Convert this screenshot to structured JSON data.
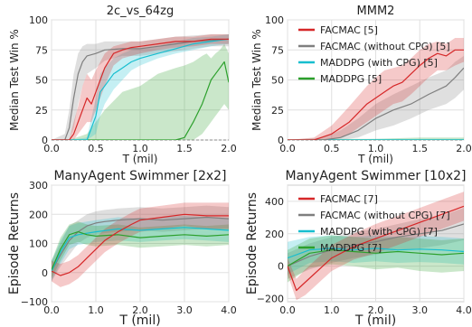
{
  "colors": {
    "facmac": "#d62728",
    "facmac_no_cpg": "#7f7f7f",
    "maddpg_cpg": "#17becf",
    "maddpg": "#2ca02c",
    "grid": "#e0e0e0",
    "axis": "#cccccc"
  },
  "chart_data": [
    {
      "id": "smac_2c",
      "type": "line",
      "title": "2c_vs_64zg",
      "xlabel": "T (mil)",
      "ylabel": "Median Test Win %",
      "xlim": [
        0,
        2.0
      ],
      "ylim": [
        0,
        100
      ],
      "xticks": [
        "0.0",
        "0.5",
        "1.0",
        "1.5",
        "2.0"
      ],
      "yticks": [
        "0",
        "25",
        "50",
        "75",
        "100"
      ],
      "xtick_values": [
        0,
        0.5,
        1.0,
        1.5,
        2.0
      ],
      "ytick_values": [
        0,
        25,
        50,
        75,
        100
      ],
      "grid": true,
      "legend": null,
      "series": [
        {
          "key": "maddpg",
          "x": [
            0,
            0.2,
            0.4,
            0.6,
            0.8,
            1.0,
            1.1,
            1.2,
            1.4,
            1.5,
            1.6,
            1.7,
            1.75,
            1.8,
            1.85,
            1.9,
            1.95,
            2.0
          ],
          "y": [
            0,
            0,
            0,
            0,
            0,
            0,
            0,
            0,
            0,
            2,
            15,
            30,
            40,
            50,
            55,
            60,
            65,
            48
          ],
          "lo": [
            0,
            0,
            0,
            0,
            0,
            0,
            0,
            0,
            0,
            0,
            0,
            5,
            10,
            15,
            20,
            25,
            30,
            25
          ],
          "hi": [
            0,
            0,
            5,
            25,
            40,
            45,
            50,
            55,
            60,
            62,
            65,
            70,
            72,
            68,
            72,
            75,
            80,
            72
          ]
        },
        {
          "key": "maddpg_cpg",
          "x": [
            0,
            0.2,
            0.4,
            0.5,
            0.55,
            0.6,
            0.7,
            0.8,
            0.9,
            1.0,
            1.2,
            1.4,
            1.6,
            1.8,
            2.0
          ],
          "y": [
            0,
            0,
            0,
            20,
            40,
            45,
            55,
            60,
            65,
            68,
            72,
            76,
            80,
            82,
            84
          ],
          "lo": [
            0,
            0,
            0,
            5,
            20,
            30,
            42,
            50,
            58,
            62,
            68,
            72,
            75,
            78,
            80
          ],
          "hi": [
            0,
            0,
            2,
            35,
            55,
            60,
            68,
            72,
            75,
            76,
            78,
            82,
            85,
            86,
            88
          ]
        },
        {
          "key": "facmac_no_cpg",
          "x": [
            0,
            0.15,
            0.2,
            0.25,
            0.3,
            0.35,
            0.4,
            0.5,
            0.6,
            0.8,
            1.0,
            1.2,
            1.4,
            1.6,
            1.8,
            2.0
          ],
          "y": [
            0,
            0,
            10,
            35,
            55,
            65,
            70,
            72,
            75,
            76,
            76,
            78,
            80,
            82,
            83,
            84
          ],
          "lo": [
            0,
            0,
            0,
            10,
            30,
            45,
            55,
            60,
            66,
            70,
            70,
            72,
            74,
            76,
            78,
            78
          ],
          "hi": [
            0,
            5,
            25,
            55,
            72,
            78,
            80,
            80,
            82,
            82,
            82,
            84,
            86,
            87,
            88,
            88
          ]
        },
        {
          "key": "facmac",
          "x": [
            0,
            0.2,
            0.25,
            0.3,
            0.35,
            0.4,
            0.45,
            0.5,
            0.6,
            0.7,
            0.8,
            0.9,
            1.0,
            1.2,
            1.4,
            1.6,
            1.8,
            2.0
          ],
          "y": [
            0,
            0,
            5,
            15,
            25,
            35,
            30,
            40,
            60,
            72,
            75,
            77,
            78,
            80,
            82,
            82,
            84,
            84
          ],
          "lo": [
            0,
            0,
            0,
            5,
            10,
            15,
            15,
            25,
            45,
            62,
            68,
            70,
            72,
            75,
            77,
            78,
            80,
            80
          ],
          "hi": [
            0,
            0,
            15,
            28,
            45,
            55,
            50,
            58,
            72,
            78,
            80,
            82,
            82,
            84,
            86,
            86,
            88,
            88
          ]
        }
      ]
    },
    {
      "id": "smac_mmm2",
      "type": "line",
      "title": "MMM2",
      "xlabel": "T (mil)",
      "ylabel": "Median Test Win %",
      "xlim": [
        0,
        2.0
      ],
      "ylim": [
        0,
        100
      ],
      "xticks": [
        "0.0",
        "0.5",
        "1.0",
        "1.5",
        "2.0"
      ],
      "yticks": [
        "0",
        "25",
        "50",
        "75",
        "100"
      ],
      "xtick_values": [
        0,
        0.5,
        1.0,
        1.5,
        2.0
      ],
      "ytick_values": [
        0,
        25,
        50,
        75,
        100
      ],
      "grid": true,
      "legend": "top-right",
      "legend_entries": [
        {
          "key": "facmac",
          "label": "FACMAC [5]"
        },
        {
          "key": "facmac_no_cpg",
          "label": "FACMAC (without CPG) [5]"
        },
        {
          "key": "maddpg_cpg",
          "label": "MADDPG (with CPG) [5]"
        },
        {
          "key": "maddpg",
          "label": "MADDPG [5]"
        }
      ],
      "series": [
        {
          "key": "maddpg",
          "x": [
            0,
            0.5,
            1.0,
            1.5,
            2.0
          ],
          "y": [
            0,
            0,
            0,
            0,
            0
          ],
          "lo": [
            0,
            0,
            0,
            0,
            0
          ],
          "hi": [
            0,
            1,
            1,
            2,
            2
          ]
        },
        {
          "key": "maddpg_cpg",
          "x": [
            0,
            0.5,
            1.0,
            1.5,
            2.0
          ],
          "y": [
            0,
            0,
            0,
            0,
            0
          ],
          "lo": [
            0,
            0,
            0,
            0,
            0
          ],
          "hi": [
            0,
            0,
            1,
            1,
            1
          ]
        },
        {
          "key": "facmac_no_cpg",
          "x": [
            0,
            0.4,
            0.6,
            0.8,
            1.0,
            1.2,
            1.4,
            1.6,
            1.8,
            1.9,
            2.0
          ],
          "y": [
            0,
            0,
            2,
            8,
            18,
            25,
            30,
            38,
            45,
            52,
            60
          ],
          "lo": [
            0,
            0,
            0,
            2,
            8,
            12,
            18,
            25,
            30,
            35,
            42
          ],
          "hi": [
            0,
            2,
            8,
            18,
            30,
            38,
            45,
            52,
            58,
            65,
            70
          ]
        },
        {
          "key": "facmac",
          "x": [
            0,
            0.3,
            0.5,
            0.7,
            0.9,
            1.0,
            1.1,
            1.2,
            1.3,
            1.4,
            1.5,
            1.6,
            1.7,
            1.8,
            1.9,
            2.0
          ],
          "y": [
            0,
            0,
            5,
            15,
            30,
            35,
            40,
            45,
            48,
            55,
            62,
            68,
            72,
            70,
            75,
            75
          ],
          "lo": [
            0,
            0,
            0,
            5,
            15,
            20,
            25,
            30,
            32,
            38,
            45,
            52,
            58,
            58,
            62,
            65
          ],
          "hi": [
            0,
            2,
            12,
            28,
            45,
            52,
            58,
            60,
            62,
            68,
            75,
            80,
            82,
            80,
            85,
            85
          ]
        }
      ]
    },
    {
      "id": "swimmer_2x2",
      "type": "line",
      "title": "ManyAgent Swimmer [2x2]",
      "xlabel": "T (mil)",
      "ylabel": "Episode Returns",
      "xlim": [
        0,
        4.0
      ],
      "ylim": [
        -100,
        300
      ],
      "xticks": [
        "0.0",
        "1.0",
        "2.0",
        "3.0",
        "4.0"
      ],
      "yticks": [
        "−100",
        "0",
        "100",
        "200",
        "300"
      ],
      "xtick_values": [
        0,
        1.0,
        2.0,
        3.0,
        4.0
      ],
      "ytick_values": [
        -100,
        0,
        100,
        200,
        300
      ],
      "grid": true,
      "legend": null,
      "series": [
        {
          "key": "facmac_no_cpg",
          "x": [
            0,
            0.2,
            0.4,
            0.6,
            0.8,
            1.0,
            1.2,
            1.5,
            2.0,
            2.5,
            3.0,
            3.5,
            4.0
          ],
          "y": [
            5,
            60,
            110,
            140,
            160,
            170,
            175,
            180,
            185,
            180,
            185,
            190,
            185
          ],
          "lo": [
            -30,
            20,
            60,
            100,
            120,
            130,
            135,
            140,
            145,
            140,
            145,
            150,
            145
          ],
          "hi": [
            40,
            100,
            160,
            180,
            200,
            210,
            215,
            220,
            225,
            220,
            225,
            230,
            225
          ]
        },
        {
          "key": "maddpg_cpg",
          "x": [
            0,
            0.2,
            0.4,
            0.6,
            0.8,
            1.0,
            1.5,
            2.0,
            2.5,
            3.0,
            3.5,
            4.0
          ],
          "y": [
            5,
            70,
            120,
            130,
            135,
            140,
            150,
            145,
            150,
            155,
            150,
            145
          ],
          "lo": [
            -30,
            30,
            80,
            95,
            100,
            105,
            110,
            105,
            110,
            115,
            110,
            105
          ],
          "hi": [
            40,
            110,
            160,
            170,
            175,
            180,
            190,
            185,
            190,
            195,
            190,
            185
          ]
        },
        {
          "key": "maddpg",
          "x": [
            0,
            0.2,
            0.4,
            0.6,
            0.8,
            1.0,
            1.5,
            2.0,
            2.5,
            3.0,
            3.5,
            4.0
          ],
          "y": [
            10,
            80,
            130,
            140,
            130,
            125,
            130,
            120,
            125,
            130,
            125,
            130
          ],
          "lo": [
            -20,
            40,
            95,
            105,
            95,
            90,
            95,
            85,
            90,
            95,
            90,
            95
          ],
          "hi": [
            40,
            120,
            165,
            175,
            165,
            160,
            165,
            155,
            160,
            165,
            160,
            165
          ]
        },
        {
          "key": "facmac",
          "x": [
            0,
            0.2,
            0.4,
            0.6,
            0.8,
            1.0,
            1.2,
            1.5,
            1.8,
            2.0,
            2.5,
            3.0,
            3.5,
            4.0
          ],
          "y": [
            5,
            -10,
            0,
            20,
            50,
            80,
            110,
            140,
            165,
            180,
            190,
            200,
            195,
            195
          ],
          "lo": [
            -30,
            -50,
            -40,
            -20,
            10,
            40,
            70,
            100,
            125,
            140,
            150,
            160,
            150,
            150
          ],
          "hi": [
            40,
            30,
            40,
            60,
            90,
            120,
            150,
            180,
            205,
            220,
            230,
            240,
            240,
            240
          ]
        }
      ]
    },
    {
      "id": "swimmer_10x2",
      "type": "line",
      "title": "ManyAgent Swimmer [10x2]",
      "xlabel": "T (mil)",
      "ylabel": "Episode Returns",
      "xlim": [
        0,
        4.0
      ],
      "ylim": [
        -220,
        500
      ],
      "xticks": [
        "0.0",
        "1.0",
        "2.0",
        "3.0",
        "4.0"
      ],
      "yticks": [
        "−200",
        "0",
        "200",
        "400"
      ],
      "xtick_values": [
        0,
        1.0,
        2.0,
        3.0,
        4.0
      ],
      "ytick_values": [
        -200,
        0,
        200,
        400
      ],
      "grid": true,
      "legend": "top-left",
      "legend_entries": [
        {
          "key": "facmac",
          "label": "FACMAC [7]"
        },
        {
          "key": "facmac_no_cpg",
          "label": "FACMAC (without CPG) [7]"
        },
        {
          "key": "maddpg_cpg",
          "label": "MADDPG (with CPG) [7]"
        },
        {
          "key": "maddpg",
          "label": "MADDPG [7]"
        }
      ],
      "series": [
        {
          "key": "facmac_no_cpg",
          "x": [
            0,
            0.5,
            1.0,
            1.5,
            2.0,
            2.5,
            3.0,
            3.5,
            4.0
          ],
          "y": [
            0,
            60,
            100,
            130,
            150,
            180,
            200,
            220,
            260
          ],
          "lo": [
            -80,
            -20,
            20,
            50,
            70,
            100,
            110,
            130,
            160
          ],
          "hi": [
            80,
            140,
            180,
            210,
            230,
            260,
            290,
            310,
            360
          ]
        },
        {
          "key": "maddpg_cpg",
          "x": [
            0,
            0.5,
            1.0,
            1.5,
            2.0,
            2.5,
            3.0,
            3.5,
            4.0
          ],
          "y": [
            50,
            100,
            110,
            100,
            110,
            100,
            105,
            100,
            90
          ],
          "lo": [
            -50,
            20,
            30,
            20,
            30,
            20,
            25,
            20,
            10
          ],
          "hi": [
            150,
            180,
            190,
            180,
            190,
            180,
            185,
            180,
            170
          ]
        },
        {
          "key": "maddpg",
          "x": [
            0,
            0.5,
            1.0,
            1.5,
            2.0,
            2.5,
            3.0,
            3.5,
            4.0
          ],
          "y": [
            0,
            80,
            100,
            90,
            80,
            90,
            80,
            70,
            80
          ],
          "lo": [
            -100,
            -10,
            10,
            0,
            -20,
            -10,
            -30,
            -40,
            -30
          ],
          "hi": [
            100,
            170,
            190,
            180,
            170,
            180,
            170,
            160,
            170
          ]
        },
        {
          "key": "facmac",
          "x": [
            0,
            0.2,
            0.4,
            0.6,
            0.8,
            1.0,
            1.5,
            2.0,
            2.5,
            3.0,
            3.5,
            3.8,
            4.0
          ],
          "y": [
            0,
            -150,
            -100,
            -50,
            0,
            50,
            120,
            170,
            220,
            270,
            320,
            350,
            370
          ],
          "lo": [
            -50,
            -210,
            -180,
            -130,
            -80,
            -30,
            40,
            80,
            130,
            180,
            230,
            260,
            280
          ],
          "hi": [
            50,
            -80,
            -20,
            30,
            80,
            130,
            200,
            260,
            310,
            360,
            410,
            440,
            460
          ]
        }
      ]
    }
  ]
}
